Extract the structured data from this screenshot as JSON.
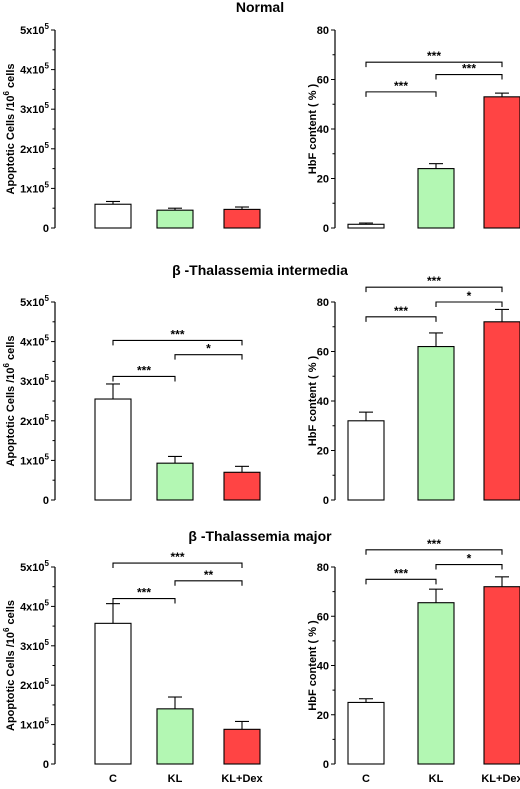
{
  "chart_data": [
    {
      "type": "bar",
      "section_title": "Normal",
      "categories": [
        "C",
        "KL",
        "KL+Dex"
      ],
      "values": [
        60000,
        45000,
        47000
      ],
      "errors": [
        7000,
        5000,
        6000
      ],
      "colors": [
        "#ffffff",
        "#b3f7b3",
        "#ff4444"
      ],
      "ylabel": "Apoptotic Cells /10^6 cells",
      "ylim": [
        0,
        500000
      ],
      "yticks": [
        0,
        100000,
        200000,
        300000,
        400000,
        500000
      ],
      "ytick_labels": [
        {
          "base": "0",
          "exp": ""
        },
        {
          "base": "1x10",
          "exp": "5"
        },
        {
          "base": "2x10",
          "exp": "5"
        },
        {
          "base": "3x10",
          "exp": "5"
        },
        {
          "base": "4x10",
          "exp": "5"
        },
        {
          "base": "5x10",
          "exp": "5"
        }
      ],
      "show_categories": false,
      "significance": []
    },
    {
      "type": "bar",
      "section_title": "",
      "categories": [
        "C",
        "KL",
        "KL+Dex"
      ],
      "values": [
        1.5,
        24,
        53
      ],
      "errors": [
        0.5,
        2,
        1.5
      ],
      "colors": [
        "#ffffff",
        "#b3f7b3",
        "#ff4444"
      ],
      "ylabel": "HbF content ( % )",
      "ylim": [
        0,
        80
      ],
      "yticks": [
        0,
        20,
        40,
        60,
        80
      ],
      "ytick_labels": [
        {
          "base": "0",
          "exp": ""
        },
        {
          "base": "20",
          "exp": ""
        },
        {
          "base": "40",
          "exp": ""
        },
        {
          "base": "60",
          "exp": ""
        },
        {
          "base": "80",
          "exp": ""
        }
      ],
      "show_categories": false,
      "significance": [
        {
          "from": 0,
          "to": 1,
          "level": 55,
          "label": "***"
        },
        {
          "from": 1,
          "to": 2,
          "level": 62,
          "label": "***"
        },
        {
          "from": 0,
          "to": 2,
          "level": 67,
          "label": "***"
        }
      ]
    },
    {
      "type": "bar",
      "section_title": "β -Thalassemia intermedia",
      "categories": [
        "C",
        "KL",
        "KL+Dex"
      ],
      "values": [
        255000,
        93000,
        70000
      ],
      "errors": [
        38000,
        17000,
        15000
      ],
      "colors": [
        "#ffffff",
        "#b3f7b3",
        "#ff4444"
      ],
      "ylabel": "Apoptotic Cells /10^6 cells",
      "ylim": [
        0,
        500000
      ],
      "yticks": [
        0,
        100000,
        200000,
        300000,
        400000,
        500000
      ],
      "ytick_labels": [
        {
          "base": "0",
          "exp": ""
        },
        {
          "base": "1x10",
          "exp": "5"
        },
        {
          "base": "2x10",
          "exp": "5"
        },
        {
          "base": "3x10",
          "exp": "5"
        },
        {
          "base": "4x10",
          "exp": "5"
        },
        {
          "base": "5x10",
          "exp": "5"
        }
      ],
      "show_categories": false,
      "significance": [
        {
          "from": 0,
          "to": 1,
          "level": 312000,
          "label": "***"
        },
        {
          "from": 1,
          "to": 2,
          "level": 367000,
          "label": "*"
        },
        {
          "from": 0,
          "to": 2,
          "level": 403000,
          "label": "***"
        }
      ]
    },
    {
      "type": "bar",
      "section_title": "",
      "categories": [
        "C",
        "KL",
        "KL+Dex"
      ],
      "values": [
        32,
        62,
        72
      ],
      "errors": [
        3.5,
        5.5,
        5
      ],
      "colors": [
        "#ffffff",
        "#b3f7b3",
        "#ff4444"
      ],
      "ylabel": "HbF content ( % )",
      "ylim": [
        0,
        80
      ],
      "yticks": [
        0,
        20,
        40,
        60,
        80
      ],
      "ytick_labels": [
        {
          "base": "0",
          "exp": ""
        },
        {
          "base": "20",
          "exp": ""
        },
        {
          "base": "40",
          "exp": ""
        },
        {
          "base": "60",
          "exp": ""
        },
        {
          "base": "80",
          "exp": ""
        }
      ],
      "show_categories": false,
      "significance": [
        {
          "from": 0,
          "to": 1,
          "level": 74,
          "label": "***"
        },
        {
          "from": 1,
          "to": 2,
          "level": 80,
          "label": "*"
        },
        {
          "from": 0,
          "to": 2,
          "level": 86,
          "label": "***"
        }
      ]
    },
    {
      "type": "bar",
      "section_title": "β -Thalassemia major",
      "categories": [
        "C",
        "KL",
        "KL+Dex"
      ],
      "values": [
        357000,
        140000,
        88000
      ],
      "errors": [
        50000,
        30000,
        20000
      ],
      "colors": [
        "#ffffff",
        "#b3f7b3",
        "#ff4444"
      ],
      "ylabel": "Apoptotic Cells /10^6 cells",
      "ylim": [
        0,
        500000
      ],
      "yticks": [
        0,
        100000,
        200000,
        300000,
        400000,
        500000
      ],
      "ytick_labels": [
        {
          "base": "0",
          "exp": ""
        },
        {
          "base": "1x10",
          "exp": "5"
        },
        {
          "base": "2x10",
          "exp": "5"
        },
        {
          "base": "3x10",
          "exp": "5"
        },
        {
          "base": "4x10",
          "exp": "5"
        },
        {
          "base": "5x10",
          "exp": "5"
        }
      ],
      "show_categories": true,
      "significance": [
        {
          "from": 0,
          "to": 1,
          "level": 420000,
          "label": "***"
        },
        {
          "from": 1,
          "to": 2,
          "level": 465000,
          "label": "**"
        },
        {
          "from": 0,
          "to": 2,
          "level": 510000,
          "label": "***"
        }
      ]
    },
    {
      "type": "bar",
      "section_title": "",
      "categories": [
        "C",
        "KL",
        "KL+Dex"
      ],
      "values": [
        25,
        65.5,
        72
      ],
      "errors": [
        1.5,
        5.5,
        4
      ],
      "colors": [
        "#ffffff",
        "#b3f7b3",
        "#ff4444"
      ],
      "ylabel": "HbF content ( % )",
      "ylim": [
        0,
        80
      ],
      "yticks": [
        0,
        20,
        40,
        60,
        80
      ],
      "ytick_labels": [
        {
          "base": "0",
          "exp": ""
        },
        {
          "base": "20",
          "exp": ""
        },
        {
          "base": "40",
          "exp": ""
        },
        {
          "base": "60",
          "exp": ""
        },
        {
          "base": "80",
          "exp": ""
        }
      ],
      "show_categories": true,
      "significance": [
        {
          "from": 0,
          "to": 1,
          "level": 75,
          "label": "***"
        },
        {
          "from": 1,
          "to": 2,
          "level": 81,
          "label": "*"
        },
        {
          "from": 0,
          "to": 2,
          "level": 87,
          "label": "***"
        }
      ]
    }
  ]
}
